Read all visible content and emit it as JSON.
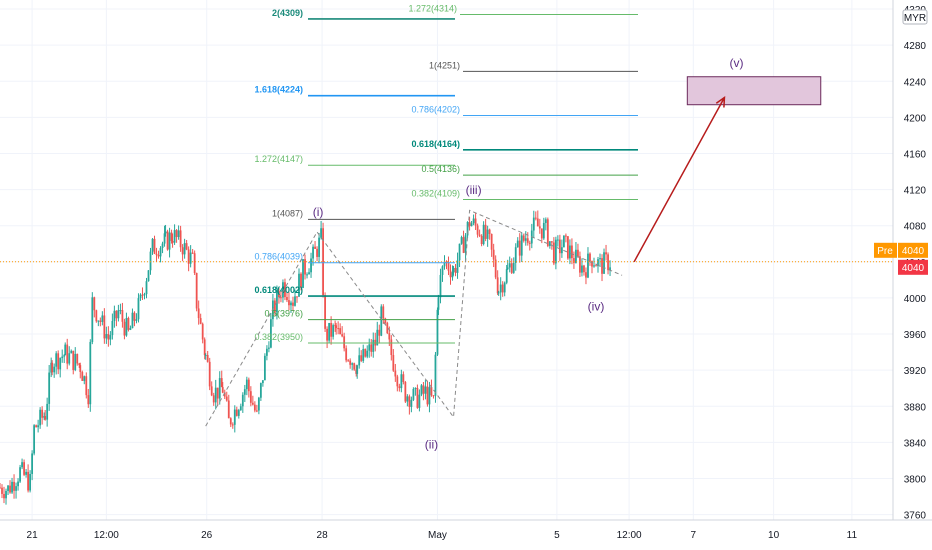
{
  "chart_data": {
    "type": "candlestick",
    "currency_label": "MYR",
    "y_ticks": [
      4320,
      4280,
      4240,
      4200,
      4160,
      4120,
      4080,
      4040,
      4000,
      3960,
      3920,
      3880,
      3840,
      3800,
      3760
    ],
    "ylim": [
      3754,
      4330
    ],
    "x_ticks": [
      {
        "label": "21",
        "t": 32
      },
      {
        "label": "12:00",
        "t": 106
      },
      {
        "label": "26",
        "t": 206
      },
      {
        "label": "28",
        "t": 321
      },
      {
        "label": "May",
        "t": 436
      },
      {
        "label": "5",
        "t": 555
      },
      {
        "label": "12:00",
        "t": 627
      },
      {
        "label": "7",
        "t": 691
      },
      {
        "label": "10",
        "t": 771
      },
      {
        "label": "11",
        "t": 849
      }
    ],
    "xlim": [
      0,
      890
    ],
    "price_tags": [
      {
        "prefix": "Pre",
        "value": "4040",
        "color": "#ff9800"
      },
      {
        "prefix": "",
        "value": "4040",
        "color": "#f23645"
      }
    ],
    "price_line": 4040,
    "keypoints": [
      [
        0,
        3790
      ],
      [
        8,
        3788
      ],
      [
        20,
        3808
      ],
      [
        30,
        3795
      ],
      [
        34,
        3855
      ],
      [
        45,
        3872
      ],
      [
        52,
        3930
      ],
      [
        65,
        3938
      ],
      [
        80,
        3925
      ],
      [
        88,
        3895
      ],
      [
        92,
        3995
      ],
      [
        100,
        3975
      ],
      [
        108,
        3955
      ],
      [
        118,
        3985
      ],
      [
        128,
        3960
      ],
      [
        140,
        3995
      ],
      [
        152,
        4055
      ],
      [
        165,
        4062
      ],
      [
        172,
        4070
      ],
      [
        182,
        4058
      ],
      [
        192,
        4040
      ],
      [
        196,
        3995
      ],
      [
        205,
        3935
      ],
      [
        213,
        3895
      ],
      [
        222,
        3900
      ],
      [
        228,
        3862
      ],
      [
        236,
        3880
      ],
      [
        246,
        3905
      ],
      [
        256,
        3868
      ],
      [
        264,
        3930
      ],
      [
        272,
        3985
      ],
      [
        282,
        4015
      ],
      [
        292,
        3998
      ],
      [
        302,
        4030
      ],
      [
        312,
        4045
      ],
      [
        320,
        4065
      ],
      [
        324,
        3958
      ],
      [
        335,
        3965
      ],
      [
        345,
        3940
      ],
      [
        356,
        3925
      ],
      [
        366,
        3938
      ],
      [
        374,
        3950
      ],
      [
        380,
        3978
      ],
      [
        388,
        3945
      ],
      [
        396,
        3915
      ],
      [
        404,
        3895
      ],
      [
        414,
        3888
      ],
      [
        424,
        3895
      ],
      [
        432,
        3885
      ],
      [
        437,
        4010
      ],
      [
        443,
        4040
      ],
      [
        452,
        4030
      ],
      [
        460,
        4055
      ],
      [
        468,
        4085
      ],
      [
        478,
        4075
      ],
      [
        488,
        4060
      ],
      [
        497,
        4010
      ],
      [
        506,
        4030
      ],
      [
        514,
        4050
      ],
      [
        524,
        4068
      ],
      [
        534,
        4080
      ],
      [
        544,
        4075
      ],
      [
        552,
        4050
      ],
      [
        562,
        4060
      ],
      [
        572,
        4045
      ],
      [
        582,
        4032
      ],
      [
        590,
        4045
      ],
      [
        598,
        4036
      ],
      [
        606,
        4040
      ],
      [
        610,
        4040
      ]
    ],
    "fib_levels": [
      {
        "label": "2(4309)",
        "value": 4309,
        "x1": 308,
        "x2": 455,
        "label_x": 303,
        "color": "#1a8a7a",
        "bold": true
      },
      {
        "label": "1.272(4314)",
        "value": 4314,
        "x1": 460,
        "x2": 638,
        "label_x": 460,
        "color": "#66bb6a",
        "bold": false
      },
      {
        "label": "1(4251)",
        "value": 4251,
        "x1": 463,
        "x2": 638,
        "label_x": 460,
        "color": "#555555",
        "bold": false
      },
      {
        "label": "1.618(4224)",
        "value": 4224,
        "x1": 308,
        "x2": 455,
        "label_x": 303,
        "color": "#2196f3",
        "bold": true
      },
      {
        "label": "0.786(4202)",
        "value": 4202,
        "x1": 463,
        "x2": 638,
        "label_x": 460,
        "color": "#42a5f5",
        "bold": false
      },
      {
        "label": "0.618(4164)",
        "value": 4164,
        "x1": 463,
        "x2": 638,
        "label_x": 460,
        "color": "#00897b",
        "bold": true
      },
      {
        "label": "1.272(4147)",
        "value": 4147,
        "x1": 308,
        "x2": 455,
        "label_x": 303,
        "color": "#66bb6a",
        "bold": false
      },
      {
        "label": "0.5(4136)",
        "value": 4136,
        "x1": 463,
        "x2": 638,
        "label_x": 460,
        "color": "#43a047",
        "bold": false
      },
      {
        "label": "0.382(4109)",
        "value": 4109,
        "x1": 463,
        "x2": 638,
        "label_x": 460,
        "color": "#66bb6a",
        "bold": false
      },
      {
        "label": "1(4087)",
        "value": 4087,
        "x1": 308,
        "x2": 455,
        "label_x": 303,
        "color": "#555555",
        "bold": false
      },
      {
        "label": "0.786(4039)",
        "value": 4039,
        "x1": 308,
        "x2": 455,
        "label_x": 303,
        "color": "#42a5f5",
        "bold": false
      },
      {
        "label": "0.618(4002)",
        "value": 4002,
        "x1": 308,
        "x2": 455,
        "label_x": 303,
        "color": "#00897b",
        "bold": true
      },
      {
        "label": "0.5(3976)",
        "value": 3976,
        "x1": 308,
        "x2": 455,
        "label_x": 303,
        "color": "#43a047",
        "bold": false
      },
      {
        "label": "0.382(3950)",
        "value": 3950,
        "x1": 308,
        "x2": 455,
        "label_x": 303,
        "color": "#66bb6a",
        "bold": false
      }
    ],
    "wave_labels": [
      {
        "label": "(i)",
        "t": 317,
        "value": 4091
      },
      {
        "label": "(ii)",
        "t": 430,
        "value": 3833
      },
      {
        "label": "(iii)",
        "t": 472,
        "value": 4115
      },
      {
        "label": "(iv)",
        "t": 594,
        "value": 3986
      },
      {
        "label": "(v)",
        "t": 734,
        "value": 4256
      }
    ],
    "wave_path": [
      [
        205,
        3858
      ],
      [
        316,
        4073
      ],
      [
        452,
        3868
      ],
      [
        468,
        4097
      ],
      [
        620,
        4025
      ]
    ],
    "target_box": {
      "t1": 685,
      "t2": 818,
      "v1": 4245,
      "v2": 4214
    },
    "target_arrow": {
      "t1": 632,
      "v1": 4040,
      "t2": 722,
      "v2": 4222
    },
    "colors": {
      "up": "#26a69a",
      "down": "#ef5350",
      "price_line": "#ff9800",
      "wave_line": "#8a8a8a",
      "wave_label": "#5b2c83",
      "box_fill": "#e2c6dc",
      "box_stroke": "#6b2a5c",
      "arrow": "#b71c1c",
      "grid": "#f0f3fa"
    }
  }
}
